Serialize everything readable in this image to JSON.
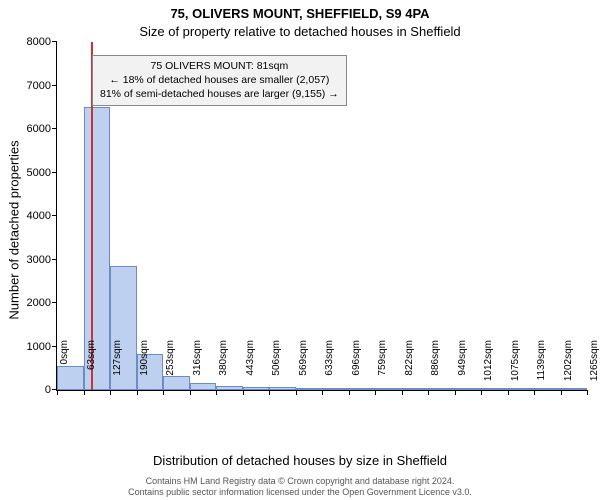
{
  "chart": {
    "type": "bar",
    "title": "75, OLIVERS MOUNT, SHEFFIELD, S9 4PA",
    "subtitle": "Size of property relative to detached houses in Sheffield",
    "ylabel": "Number of detached properties",
    "xlabel": "Distribution of detached houses by size in Sheffield",
    "background_color": "#ffffff",
    "bar_fill": "#bdd0ef",
    "bar_border": "#6d8bc4",
    "marker_color": "#cc3333",
    "axis_color": "#000000",
    "annotation_bg": "#f2f2f2",
    "annotation_border": "#888888",
    "ylim": [
      0,
      8000
    ],
    "ytick_step": 1000,
    "y_ticks": [
      0,
      1000,
      2000,
      3000,
      4000,
      5000,
      6000,
      7000,
      8000
    ],
    "x_tick_labels": [
      "0sqm",
      "63sqm",
      "127sqm",
      "190sqm",
      "253sqm",
      "316sqm",
      "380sqm",
      "443sqm",
      "506sqm",
      "569sqm",
      "633sqm",
      "696sqm",
      "759sqm",
      "822sqm",
      "886sqm",
      "949sqm",
      "1012sqm",
      "1075sqm",
      "1139sqm",
      "1202sqm",
      "1265sqm"
    ],
    "x_bin_width": 63.25,
    "x_max": 1265,
    "values": [
      560,
      6500,
      2850,
      820,
      320,
      160,
      100,
      60,
      60,
      30,
      20,
      15,
      10,
      10,
      5,
      5,
      5,
      5,
      5,
      5
    ],
    "marker_x": 81,
    "annotation": {
      "line1": "75 OLIVERS MOUNT: 81sqm",
      "line2": "← 18% of detached houses are smaller (2,057)",
      "line3": "81% of semi-detached houses are larger (9,155) →"
    },
    "title_fontsize": 13,
    "subtitle_fontsize": 13,
    "axis_label_fontsize": 13,
    "tick_fontsize": 11,
    "annotation_fontsize": 10.5
  },
  "footer": {
    "line1": "Contains HM Land Registry data © Crown copyright and database right 2024.",
    "line2": "Contains public sector information licensed under the Open Government Licence v3.0.",
    "color": "#555555",
    "fontsize": 9
  }
}
